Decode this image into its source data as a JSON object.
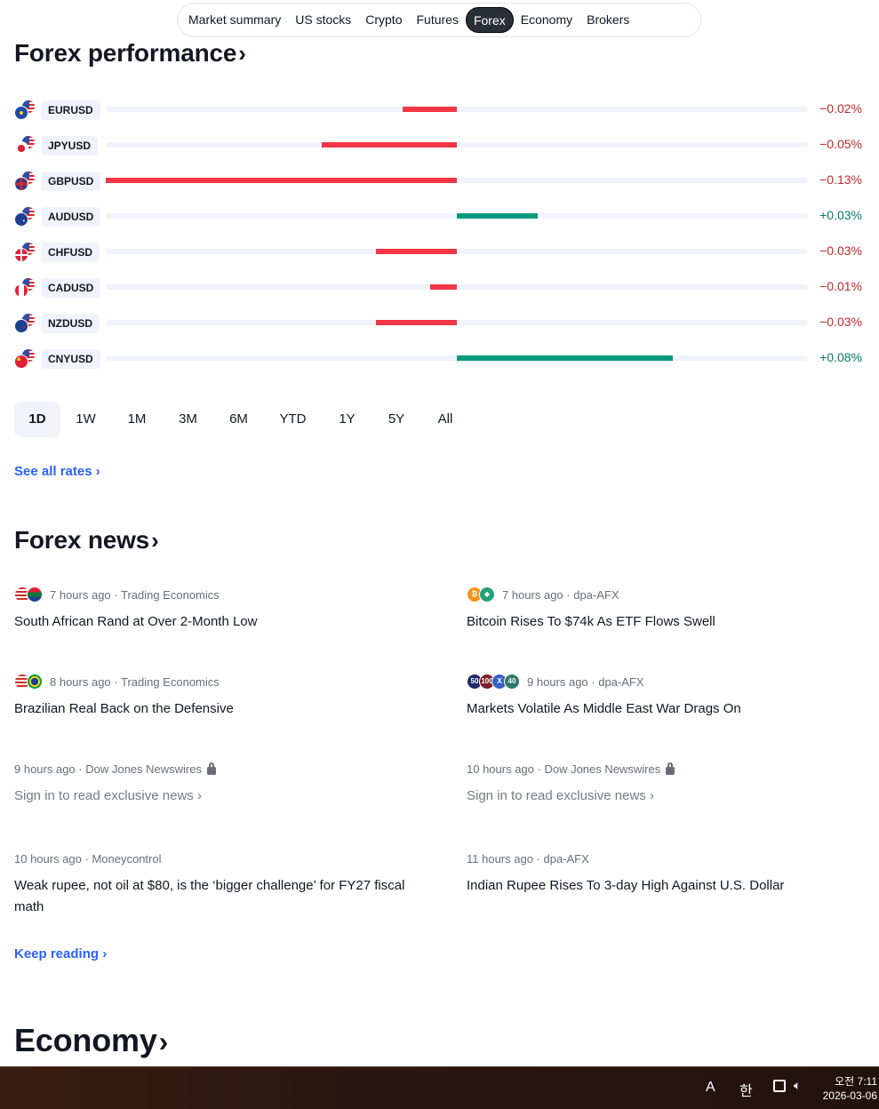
{
  "nav": {
    "items": [
      "Market summary",
      "US stocks",
      "Crypto",
      "Futures",
      "Forex",
      "Economy",
      "Brokers"
    ],
    "active": "Forex"
  },
  "forex_performance": {
    "title": "Forex performance",
    "rows": [
      {
        "symbol": "EURUSD",
        "change": "−0.02%",
        "value": -0.02,
        "flag": "eu-flag-icon"
      },
      {
        "symbol": "JPYUSD",
        "change": "−0.05%",
        "value": -0.05,
        "flag": "jp-flag-icon"
      },
      {
        "symbol": "GBPUSD",
        "change": "−0.13%",
        "value": -0.13,
        "flag": "gb-flag-icon"
      },
      {
        "symbol": "AUDUSD",
        "change": "+0.03%",
        "value": 0.03,
        "flag": "au-flag-icon"
      },
      {
        "symbol": "CHFUSD",
        "change": "−0.03%",
        "value": -0.03,
        "flag": "ch-flag-icon"
      },
      {
        "symbol": "CADUSD",
        "change": "−0.01%",
        "value": -0.01,
        "flag": "ca-flag-icon"
      },
      {
        "symbol": "NZDUSD",
        "change": "−0.03%",
        "value": -0.03,
        "flag": "nz-flag-icon"
      },
      {
        "symbol": "CNYUSD",
        "change": "+0.08%",
        "value": 0.08,
        "flag": "cn-flag-icon"
      }
    ],
    "max_abs": 0.13,
    "ranges": [
      "1D",
      "1W",
      "1M",
      "3M",
      "6M",
      "YTD",
      "1Y",
      "5Y",
      "All"
    ],
    "active_range": "1D",
    "see_all": "See all rates ›"
  },
  "forex_news": {
    "title": "Forex news",
    "items": [
      {
        "time": "7 hours ago",
        "source": "Trading Economics",
        "headline": "South African Rand at Over 2-Month Low",
        "locked": false,
        "icons": [
          "us-flag-icon",
          "za-flag-icon"
        ]
      },
      {
        "time": "7 hours ago",
        "source": "dpa-AFX",
        "headline": "Bitcoin Rises To $74k As ETF Flows Swell",
        "locked": false,
        "icons": [
          "bitcoin-icon",
          "tether-icon"
        ]
      },
      {
        "time": "8 hours ago",
        "source": "Trading Economics",
        "headline": "Brazilian Real Back on the Defensive",
        "locked": false,
        "icons": [
          "us-flag-icon",
          "br-flag-icon"
        ]
      },
      {
        "time": "9 hours ago",
        "source": "dpa-AFX",
        "headline": "Markets Volatile As Middle East War Drags On",
        "locked": false,
        "icons": [
          "index-50-icon",
          "index-100-icon",
          "x-icon",
          "index-40-icon"
        ]
      },
      {
        "time": "9 hours ago",
        "source": "Dow Jones Newswires",
        "headline": "Sign in to read exclusive news ›",
        "locked": true,
        "icons": []
      },
      {
        "time": "10 hours ago",
        "source": "Dow Jones Newswires",
        "headline": "Sign in to read exclusive news ›",
        "locked": true,
        "icons": []
      },
      {
        "time": "10 hours ago",
        "source": "Moneycontrol",
        "headline": "Weak rupee, not oil at $80, is the ‘bigger challenge’ for FY27 fiscal math",
        "locked": false,
        "icons": []
      },
      {
        "time": "11 hours ago",
        "source": "dpa-AFX",
        "headline": "Indian Rupee Rises To 3-day High Against U.S. Dollar",
        "locked": false,
        "icons": []
      }
    ],
    "keep_reading": "Keep reading ›"
  },
  "economy": {
    "title": "Economy"
  },
  "colors": {
    "negative": "#f23645",
    "positive": "#089981",
    "link": "#2962ff"
  },
  "taskbar": {
    "ime": "A",
    "lang": "한",
    "time": "오전 7:11",
    "date": "2026-03-06"
  }
}
